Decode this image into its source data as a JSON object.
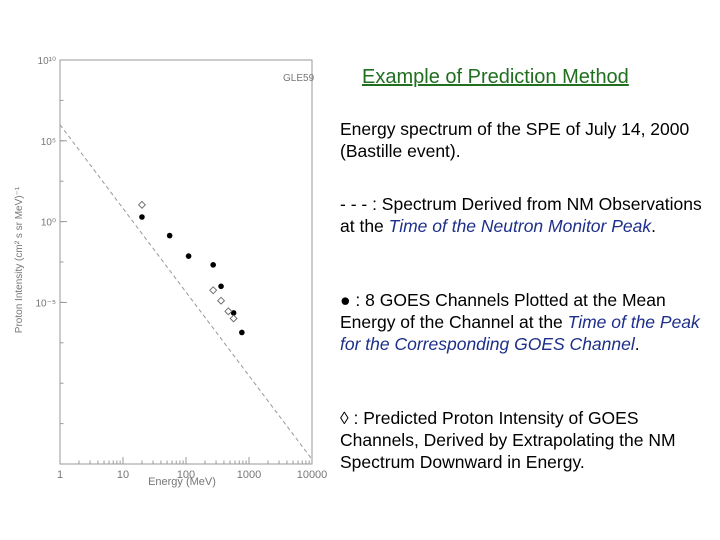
{
  "chart_data": {
    "type": "scatter",
    "annotation": "GLE59",
    "xlabel": "Energy (MeV)",
    "ylabel": "Proton Intensity (cm² s sr MeV)⁻¹",
    "x_scale": "log",
    "y_scale": "log",
    "xlim": [
      1,
      10000
    ],
    "ylim": [
      1e-05,
      100000
    ],
    "x_ticks": [
      {
        "value": 1,
        "label": "1"
      },
      {
        "value": 10,
        "label": "10"
      },
      {
        "value": 100,
        "label": "100"
      },
      {
        "value": 1000,
        "label": "1000"
      },
      {
        "value": 10000,
        "label": "10000"
      }
    ],
    "y_ticks": [
      {
        "value": 100000,
        "label": "10¹⁰"
      },
      {
        "value": 1000,
        "label": "10⁵"
      },
      {
        "value": 10,
        "label": "10⁰"
      },
      {
        "value": 0.1,
        "label": "10⁻⁵"
      }
    ],
    "series": [
      {
        "marker": "dashed-line",
        "x": [
          1,
          10000
        ],
        "y": [
          2500,
          1.3e-05
        ]
      },
      {
        "marker": "filled-circle",
        "x": [
          20,
          55,
          110,
          270,
          360,
          470,
          570,
          770
        ],
        "y": [
          13,
          4.5,
          1.4,
          0.85,
          0.25,
          0.06,
          0.055,
          0.018
        ]
      },
      {
        "marker": "open-diamond",
        "x": [
          20,
          270,
          360,
          470,
          570
        ],
        "y": [
          26,
          0.2,
          0.11,
          0.06,
          0.04
        ]
      }
    ]
  },
  "text": {
    "title": "Example of Prediction Method",
    "para1": "Energy spectrum of the SPE of July 14, 2000 (Bastille event).",
    "para2_a": "- - -  : Spectrum Derived from NM Observations at the ",
    "para2_em": "Time of the Neutron Monitor Peak",
    "para2_end": ".",
    "para3_a": "● : 8 GOES Channels Plotted at the Mean Energy of the Channel at the ",
    "para3_em": "Time of the Peak for the Corresponding GOES Channel",
    "para3_end": ".",
    "para4": "◊ : Predicted Proton Intensity of GOES Channels, Derived by Extrapolating the NM Spectrum Downward in Energy."
  }
}
